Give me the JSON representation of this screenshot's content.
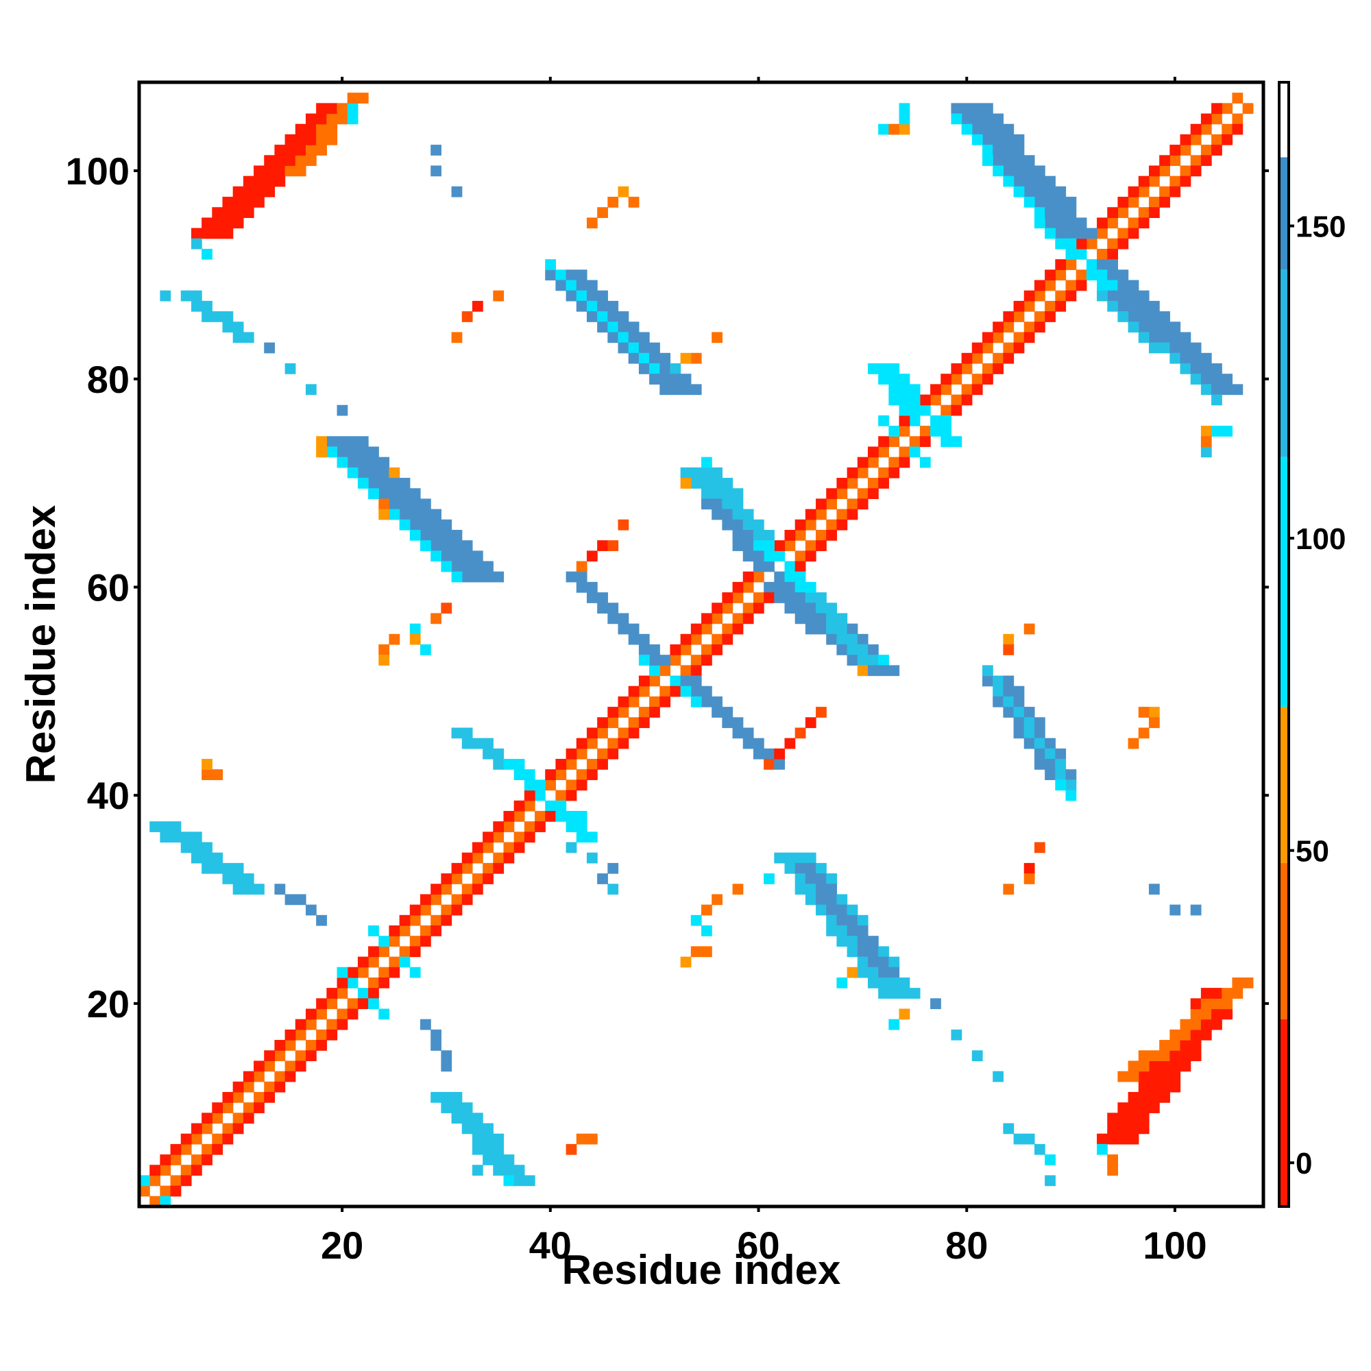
{
  "chart_data": {
    "type": "heatmap",
    "title": "",
    "xlabel": "Residue index",
    "ylabel": "Residue index",
    "xlim": [
      1,
      108
    ],
    "ylim": [
      1,
      108
    ],
    "xticks": [
      20,
      40,
      60,
      80,
      100
    ],
    "yticks": [
      20,
      40,
      60,
      80,
      100
    ],
    "grid": false,
    "colorbar": {
      "ticks": [
        0,
        50,
        100,
        150
      ],
      "range": [
        0,
        180
      ],
      "bands": [
        {
          "from": 0,
          "to": 30,
          "color": "#ff1a00"
        },
        {
          "from": 30,
          "to": 55,
          "color": "#ff6a00"
        },
        {
          "from": 55,
          "to": 80,
          "color": "#ff9900"
        },
        {
          "from": 80,
          "to": 120,
          "color": "#00e5ff"
        },
        {
          "from": 120,
          "to": 150,
          "color": "#29b6e0"
        },
        {
          "from": 150,
          "to": 168,
          "color": "#3d8ec9"
        },
        {
          "from": 168,
          "to": 180,
          "color": "#ffffff"
        }
      ]
    },
    "palette": {
      "0": "#ff1a00",
      "1": "#ff4d00",
      "2": "#ff7000",
      "3": "#ff9900",
      "4": "#00e5ff",
      "5": "#26c2e6",
      "6": "#4a90c8"
    },
    "segments": [
      {
        "x0": 1,
        "y0": 1,
        "x1": 108,
        "y1": 108,
        "code": 6,
        "comment": "main diagonal empty"
      },
      {
        "x0": 2,
        "y0": 1,
        "x1": 107,
        "y1": 106,
        "code": 2
      },
      {
        "x0": 1,
        "y0": 2,
        "x1": 106,
        "y1": 107,
        "code": 2
      },
      {
        "x0": 3,
        "y0": 1,
        "x1": 106,
        "y1": 104,
        "code": 0
      },
      {
        "x0": 1,
        "y0": 3,
        "x1": 104,
        "y1": 106,
        "code": 0
      },
      {
        "x0": 3,
        "y0": 37,
        "x1": 11,
        "y1": 31,
        "code": 5,
        "w": 3
      },
      {
        "x0": 5,
        "y0": 88,
        "x1": 10,
        "y1": 84,
        "code": 5,
        "w": 2
      },
      {
        "x0": 7,
        "y0": 94,
        "x1": 19,
        "y1": 106,
        "code": 0,
        "w": 4
      },
      {
        "x0": 15,
        "y0": 100,
        "x1": 21,
        "y1": 107,
        "code": 2,
        "w": 2
      },
      {
        "x0": 20,
        "y0": 74,
        "x1": 33,
        "y1": 61,
        "code": 6,
        "w": 4
      },
      {
        "x0": 19,
        "y0": 73,
        "x1": 31,
        "y1": 61,
        "code": 4,
        "w": 1
      },
      {
        "x0": 14,
        "y0": 31,
        "x1": 18,
        "y1": 28,
        "code": 6,
        "w": 1
      },
      {
        "x0": 28,
        "y0": 18,
        "x1": 30,
        "y1": 14,
        "code": 6,
        "w": 1
      },
      {
        "x0": 30,
        "y0": 11,
        "x1": 37,
        "y1": 3,
        "code": 5,
        "w": 3
      },
      {
        "x0": 31,
        "y0": 46,
        "x1": 37,
        "y1": 42,
        "code": 5,
        "w": 2
      },
      {
        "x0": 41,
        "y0": 90,
        "x1": 52,
        "y1": 79,
        "code": 6,
        "w": 4
      },
      {
        "x0": 40,
        "y0": 91,
        "x1": 50,
        "y1": 81,
        "code": 4,
        "w": 1
      },
      {
        "x0": 42,
        "y0": 61,
        "x1": 50,
        "y1": 53,
        "code": 6,
        "w": 2
      },
      {
        "x0": 53,
        "y0": 51,
        "x1": 61,
        "y1": 43,
        "code": 6,
        "w": 2
      },
      {
        "x0": 54,
        "y0": 71,
        "x1": 61,
        "y1": 62,
        "code": 5,
        "w": 4
      },
      {
        "x0": 55,
        "y0": 68,
        "x1": 61,
        "y1": 61,
        "code": 6,
        "w": 2
      },
      {
        "x0": 62,
        "y0": 60,
        "x1": 71,
        "y1": 52,
        "code": 6,
        "w": 4
      },
      {
        "x0": 63,
        "y0": 61,
        "x1": 70,
        "y1": 53,
        "code": 5,
        "w": 2
      },
      {
        "x0": 63,
        "y0": 34,
        "x1": 73,
        "y1": 21,
        "code": 5,
        "w": 4
      },
      {
        "x0": 64,
        "y0": 33,
        "x1": 72,
        "y1": 23,
        "code": 6,
        "w": 2
      },
      {
        "x0": 72,
        "y0": 81,
        "x1": 76,
        "y1": 76,
        "code": 4,
        "w": 3
      },
      {
        "x0": 76,
        "y0": 77,
        "x1": 78,
        "y1": 74,
        "code": 4,
        "w": 2
      },
      {
        "x0": 80,
        "y0": 106,
        "x1": 90,
        "y1": 94,
        "code": 6,
        "w": 4
      },
      {
        "x0": 79,
        "y0": 105,
        "x1": 89,
        "y1": 93,
        "code": 4,
        "w": 1
      },
      {
        "x0": 92,
        "y0": 91,
        "x1": 104,
        "y1": 79,
        "code": 6,
        "w": 4
      },
      {
        "x0": 93,
        "y0": 88,
        "x1": 104,
        "y1": 78,
        "code": 5,
        "w": 1
      },
      {
        "x0": 83,
        "y0": 51,
        "x1": 89,
        "y1": 42,
        "code": 6,
        "w": 3
      },
      {
        "x0": 82,
        "y0": 52,
        "x1": 90,
        "y1": 41,
        "code": 5,
        "w": 1
      },
      {
        "x0": 84,
        "y0": 8,
        "x1": 88,
        "y1": 5,
        "code": 5,
        "w": 1
      },
      {
        "x0": 94,
        "y0": 7,
        "x1": 104,
        "y1": 21,
        "code": 0,
        "w": 4
      },
      {
        "x0": 95,
        "y0": 13,
        "x1": 106,
        "y1": 22,
        "code": 2,
        "w": 2
      },
      {
        "x0": 89,
        "y0": 93,
        "x1": 93,
        "y1": 89,
        "code": 4,
        "w": 2
      },
      {
        "x0": 60,
        "y0": 64,
        "x1": 64,
        "y1": 60,
        "code": 4,
        "w": 2
      },
      {
        "x0": 36,
        "y0": 43,
        "x1": 43,
        "y1": 36,
        "code": 4,
        "w": 2
      },
      {
        "x0": 20,
        "y0": 23,
        "x1": 24,
        "y1": 19,
        "code": 4,
        "w": 1
      },
      {
        "x0": 23,
        "y0": 27,
        "x1": 27,
        "y1": 23,
        "code": 4,
        "w": 1
      },
      {
        "x0": 49,
        "y0": 53,
        "x1": 54,
        "y1": 49,
        "code": 4,
        "w": 1
      },
      {
        "x0": 72,
        "y0": 76,
        "x1": 76,
        "y1": 72,
        "code": 4,
        "w": 1
      },
      {
        "x0": 1,
        "y0": 3,
        "x1": 3,
        "y1": 1,
        "code": 4,
        "w": 1
      }
    ],
    "points": [
      {
        "x": 29,
        "y": 102,
        "code": 6
      },
      {
        "x": 29,
        "y": 100,
        "code": 6
      },
      {
        "x": 31,
        "y": 98,
        "code": 6
      },
      {
        "x": 44,
        "y": 95,
        "code": 2
      },
      {
        "x": 45,
        "y": 96,
        "code": 2
      },
      {
        "x": 46,
        "y": 97,
        "code": 2
      },
      {
        "x": 47,
        "y": 98,
        "code": 3
      },
      {
        "x": 48,
        "y": 97,
        "code": 2
      },
      {
        "x": 32,
        "y": 86,
        "code": 1
      },
      {
        "x": 33,
        "y": 87,
        "code": 0
      },
      {
        "x": 35,
        "y": 88,
        "code": 2
      },
      {
        "x": 31,
        "y": 84,
        "code": 2
      },
      {
        "x": 56,
        "y": 84,
        "code": 2
      },
      {
        "x": 54,
        "y": 82,
        "code": 2
      },
      {
        "x": 53,
        "y": 82,
        "code": 3
      },
      {
        "x": 52,
        "y": 81,
        "code": 5
      },
      {
        "x": 13,
        "y": 83,
        "code": 6
      },
      {
        "x": 15,
        "y": 81,
        "code": 5
      },
      {
        "x": 17,
        "y": 79,
        "code": 5
      },
      {
        "x": 20,
        "y": 77,
        "code": 6
      },
      {
        "x": 44,
        "y": 63,
        "code": 0
      },
      {
        "x": 45,
        "y": 64,
        "code": 0
      },
      {
        "x": 46,
        "y": 64,
        "code": 1
      },
      {
        "x": 47,
        "y": 66,
        "code": 1
      },
      {
        "x": 43,
        "y": 62,
        "code": 2
      },
      {
        "x": 25,
        "y": 55,
        "code": 2
      },
      {
        "x": 24,
        "y": 54,
        "code": 2
      },
      {
        "x": 24,
        "y": 53,
        "code": 3
      },
      {
        "x": 27,
        "y": 56,
        "code": 4
      },
      {
        "x": 27,
        "y": 55,
        "code": 3
      },
      {
        "x": 29,
        "y": 57,
        "code": 2
      },
      {
        "x": 30,
        "y": 58,
        "code": 1
      },
      {
        "x": 28,
        "y": 54,
        "code": 4
      },
      {
        "x": 7,
        "y": 42,
        "code": 2
      },
      {
        "x": 7,
        "y": 43,
        "code": 3
      },
      {
        "x": 8,
        "y": 42,
        "code": 2
      },
      {
        "x": 61,
        "y": 43,
        "code": 1
      },
      {
        "x": 62,
        "y": 44,
        "code": 0
      },
      {
        "x": 63,
        "y": 45,
        "code": 0
      },
      {
        "x": 64,
        "y": 46,
        "code": 1
      },
      {
        "x": 65,
        "y": 47,
        "code": 0
      },
      {
        "x": 66,
        "y": 48,
        "code": 1
      },
      {
        "x": 55,
        "y": 29,
        "code": 2
      },
      {
        "x": 56,
        "y": 30,
        "code": 2
      },
      {
        "x": 58,
        "y": 31,
        "code": 2
      },
      {
        "x": 54,
        "y": 28,
        "code": 4
      },
      {
        "x": 55,
        "y": 27,
        "code": 4
      },
      {
        "x": 54,
        "y": 25,
        "code": 2
      },
      {
        "x": 53,
        "y": 24,
        "code": 3
      },
      {
        "x": 55,
        "y": 25,
        "code": 2
      },
      {
        "x": 42,
        "y": 6,
        "code": 1
      },
      {
        "x": 43,
        "y": 7,
        "code": 2
      },
      {
        "x": 44,
        "y": 7,
        "code": 2
      },
      {
        "x": 84,
        "y": 55,
        "code": 3
      },
      {
        "x": 84,
        "y": 54,
        "code": 1
      },
      {
        "x": 86,
        "y": 56,
        "code": 2
      },
      {
        "x": 96,
        "y": 45,
        "code": 2
      },
      {
        "x": 97,
        "y": 46,
        "code": 2
      },
      {
        "x": 98,
        "y": 48,
        "code": 3
      },
      {
        "x": 97,
        "y": 48,
        "code": 2
      },
      {
        "x": 98,
        "y": 47,
        "code": 2
      },
      {
        "x": 87,
        "y": 35,
        "code": 1
      },
      {
        "x": 86,
        "y": 33,
        "code": 0
      },
      {
        "x": 86,
        "y": 32,
        "code": 2
      },
      {
        "x": 84,
        "y": 31,
        "code": 2
      },
      {
        "x": 98,
        "y": 31,
        "code": 6
      },
      {
        "x": 100,
        "y": 29,
        "code": 6
      },
      {
        "x": 102,
        "y": 29,
        "code": 6
      },
      {
        "x": 77,
        "y": 20,
        "code": 6
      },
      {
        "x": 79,
        "y": 17,
        "code": 5
      },
      {
        "x": 81,
        "y": 15,
        "code": 5
      },
      {
        "x": 83,
        "y": 13,
        "code": 5
      },
      {
        "x": 88,
        "y": 3,
        "code": 5
      },
      {
        "x": 93,
        "y": 6,
        "code": 4
      },
      {
        "x": 103,
        "y": 75,
        "code": 3
      },
      {
        "x": 104,
        "y": 75,
        "code": 4
      },
      {
        "x": 105,
        "y": 75,
        "code": 4
      },
      {
        "x": 103,
        "y": 73,
        "code": 5
      },
      {
        "x": 103,
        "y": 74,
        "code": 2
      },
      {
        "x": 72,
        "y": 104,
        "code": 4
      },
      {
        "x": 73,
        "y": 104,
        "code": 2
      },
      {
        "x": 74,
        "y": 104,
        "code": 3
      },
      {
        "x": 74,
        "y": 105,
        "code": 4
      },
      {
        "x": 74,
        "y": 106,
        "code": 4
      },
      {
        "x": 3,
        "y": 88,
        "code": 5
      },
      {
        "x": 7,
        "y": 92,
        "code": 4
      },
      {
        "x": 6,
        "y": 93,
        "code": 5
      },
      {
        "x": 21,
        "y": 106,
        "code": 4
      },
      {
        "x": 21,
        "y": 105,
        "code": 4
      },
      {
        "x": 94,
        "y": 4,
        "code": 2
      },
      {
        "x": 94,
        "y": 5,
        "code": 2
      },
      {
        "x": 36,
        "y": 3,
        "code": 4
      },
      {
        "x": 33,
        "y": 4,
        "code": 5
      },
      {
        "x": 88,
        "y": 5,
        "code": 4
      },
      {
        "x": 89,
        "y": 41,
        "code": 4
      },
      {
        "x": 90,
        "y": 40,
        "code": 4
      },
      {
        "x": 18,
        "y": 73,
        "code": 3
      },
      {
        "x": 18,
        "y": 74,
        "code": 3
      },
      {
        "x": 25,
        "y": 71,
        "code": 3
      },
      {
        "x": 24,
        "y": 67,
        "code": 3
      },
      {
        "x": 24,
        "y": 68,
        "code": 2
      },
      {
        "x": 55,
        "y": 72,
        "code": 4
      },
      {
        "x": 53,
        "y": 70,
        "code": 3
      },
      {
        "x": 70,
        "y": 52,
        "code": 3
      },
      {
        "x": 72,
        "y": 53,
        "code": 4
      },
      {
        "x": 43,
        "y": 38,
        "code": 4
      },
      {
        "x": 45,
        "y": 32,
        "code": 6
      },
      {
        "x": 46,
        "y": 31,
        "code": 5
      },
      {
        "x": 46,
        "y": 33,
        "code": 6
      },
      {
        "x": 42,
        "y": 35,
        "code": 5
      },
      {
        "x": 44,
        "y": 34,
        "code": 5
      },
      {
        "x": 61,
        "y": 32,
        "code": 4
      },
      {
        "x": 73,
        "y": 18,
        "code": 4
      },
      {
        "x": 74,
        "y": 19,
        "code": 3
      },
      {
        "x": 69,
        "y": 23,
        "code": 3
      },
      {
        "x": 68,
        "y": 22,
        "code": 4
      }
    ]
  }
}
